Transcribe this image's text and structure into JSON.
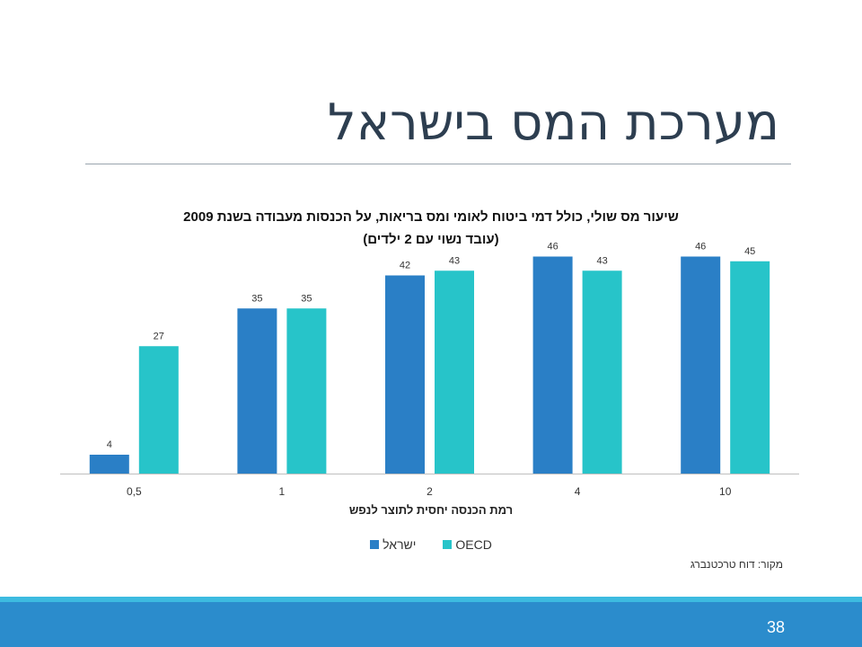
{
  "slide": {
    "title": "מערכת המס בישראל",
    "source": "מקור: דוח טרכטנברג",
    "page_number": "38"
  },
  "colors": {
    "israel": "#2a7fc6",
    "oecd": "#27c4c9",
    "title": "#2d3e50",
    "footer": "#2b8ccc",
    "footer_strip": "#3dbbe0"
  },
  "chart_data": {
    "type": "bar",
    "title": "שיעור מס שולי, כולל דמי ביטוח לאומי ומס בריאות, על הכנסות מעבודה בשנת 2009",
    "subtitle": "(עובד נשוי עם 2 ילדים)",
    "xlabel": "רמת הכנסה יחסית לתוצר לנפש",
    "ylabel": "",
    "categories": [
      "0,5",
      "1",
      "2",
      "4",
      "10"
    ],
    "series": [
      {
        "name": "ישראל",
        "values": [
          4,
          35,
          42,
          46,
          46
        ]
      },
      {
        "name": "OECD",
        "values": [
          27,
          35,
          43,
          43,
          45
        ]
      }
    ],
    "ylim": [
      0,
      48
    ],
    "grid": false,
    "legend_position": "bottom",
    "data_labels": true
  }
}
